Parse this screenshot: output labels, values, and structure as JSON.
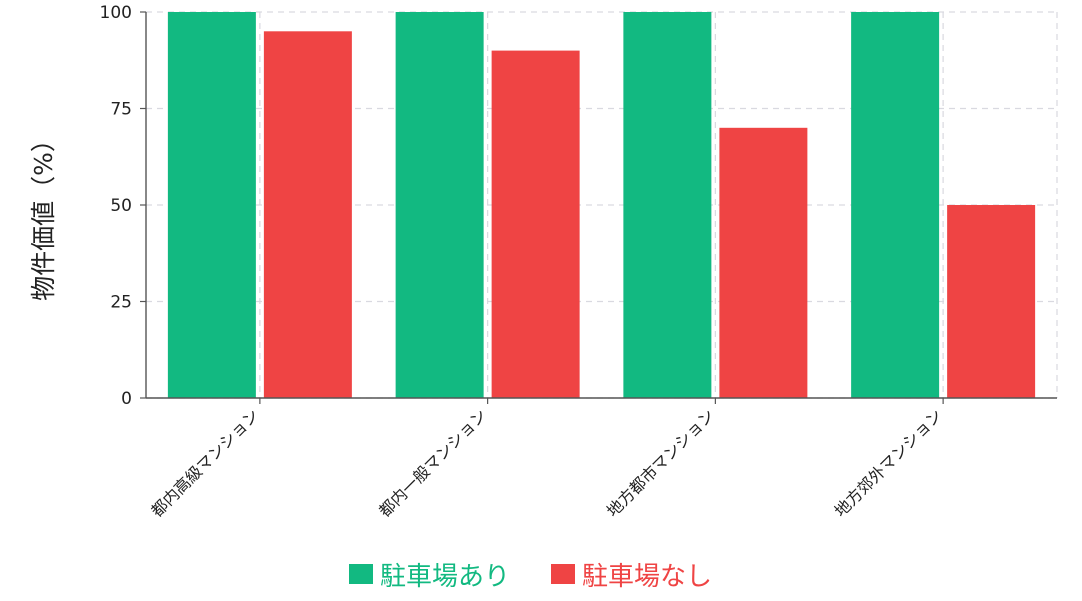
{
  "chart_data": {
    "type": "bar",
    "title": "",
    "xlabel": "",
    "ylabel": "物件価値（%）",
    "ylim": [
      0,
      100
    ],
    "yticks": [
      "0",
      "25",
      "50",
      "75",
      "100"
    ],
    "categories": [
      "都内高級マンション",
      "都内一般マンション",
      "地方都市マンション",
      "地方郊外マンション"
    ],
    "series": [
      {
        "name": "駐車場あり",
        "color": "#12b981",
        "values": [
          100,
          100,
          100,
          100
        ]
      },
      {
        "name": "駐車場なし",
        "color": "#ef4444",
        "values": [
          95,
          90,
          70,
          50
        ]
      }
    ],
    "grid": true,
    "legend_position": "bottom-center"
  }
}
